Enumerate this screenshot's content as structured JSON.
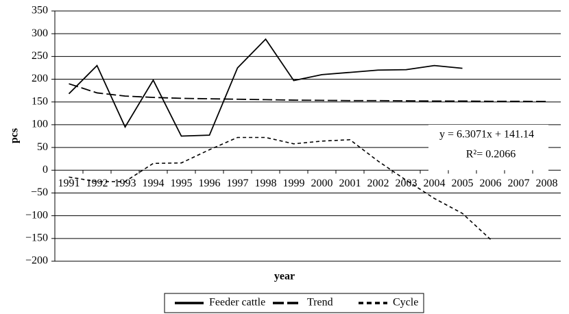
{
  "chart_data": {
    "type": "line",
    "x_label": "year",
    "y_label": "pcs",
    "categories": [
      "1991",
      "1992",
      "1993",
      "1994",
      "1995",
      "1996",
      "1997",
      "1998",
      "1999",
      "2000",
      "2001",
      "2002",
      "2003",
      "2004",
      "2005",
      "2006",
      "2007",
      "2008"
    ],
    "series": [
      {
        "name": "Feeder cattle",
        "color": "#000000",
        "dash": "solid",
        "values": [
          168,
          230,
          95,
          198,
          75,
          77,
          225,
          288,
          197,
          210,
          215,
          220,
          221,
          230,
          224,
          null,
          null,
          null
        ]
      },
      {
        "name": "Trend",
        "color": "#000000",
        "dash": "long",
        "values": [
          190,
          170,
          163,
          160,
          158,
          157,
          156,
          155,
          154,
          153.5,
          153,
          153,
          152.5,
          152,
          152,
          151.5,
          151.5,
          151
        ]
      },
      {
        "name": "Cycle",
        "color": "#000000",
        "dash": "short",
        "values": [
          -15,
          -25,
          -25,
          15,
          16,
          45,
          72,
          72,
          58,
          64,
          67,
          20,
          -22,
          -62,
          -95,
          -152,
          null,
          null
        ]
      }
    ],
    "ylim": [
      -200,
      350
    ],
    "yticks": [
      {
        "value": -200,
        "label": "−200"
      },
      {
        "value": -150,
        "label": "−150"
      },
      {
        "value": -100,
        "label": "−100"
      },
      {
        "value": -50,
        "label": "−50"
      },
      0,
      50,
      100,
      150,
      200,
      250,
      300,
      350
    ],
    "grid": true,
    "legend": "bottom",
    "annotations": [
      "y = 6.3071x + 141.14",
      "R²= 0.2066"
    ]
  }
}
